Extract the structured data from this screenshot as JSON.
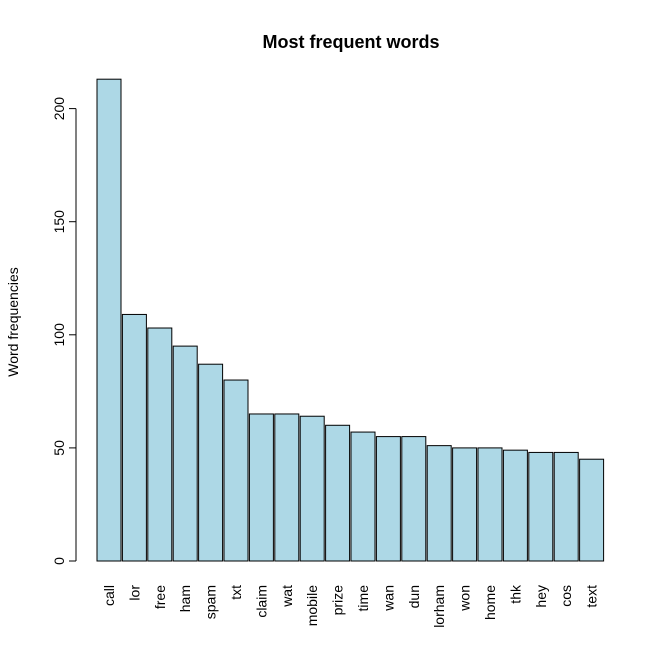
{
  "chart_data": {
    "type": "bar",
    "title": "Most frequent words",
    "xlabel": "",
    "ylabel": "Word frequencies",
    "categories": [
      "call",
      "lor",
      "free",
      "ham",
      "spam",
      "txt",
      "claim",
      "wat",
      "mobile",
      "prize",
      "time",
      "wan",
      "dun",
      "lorham",
      "won",
      "home",
      "thk",
      "hey",
      "cos",
      "text"
    ],
    "values": [
      213,
      109,
      103,
      95,
      87,
      80,
      65,
      65,
      64,
      60,
      57,
      55,
      55,
      51,
      50,
      50,
      49,
      48,
      48,
      45
    ],
    "ylim": [
      0,
      213
    ],
    "yticks": [
      0,
      50,
      100,
      150,
      200
    ],
    "grid": false,
    "bar_color": "#add8e6",
    "bar_edge_color": "#000000"
  }
}
